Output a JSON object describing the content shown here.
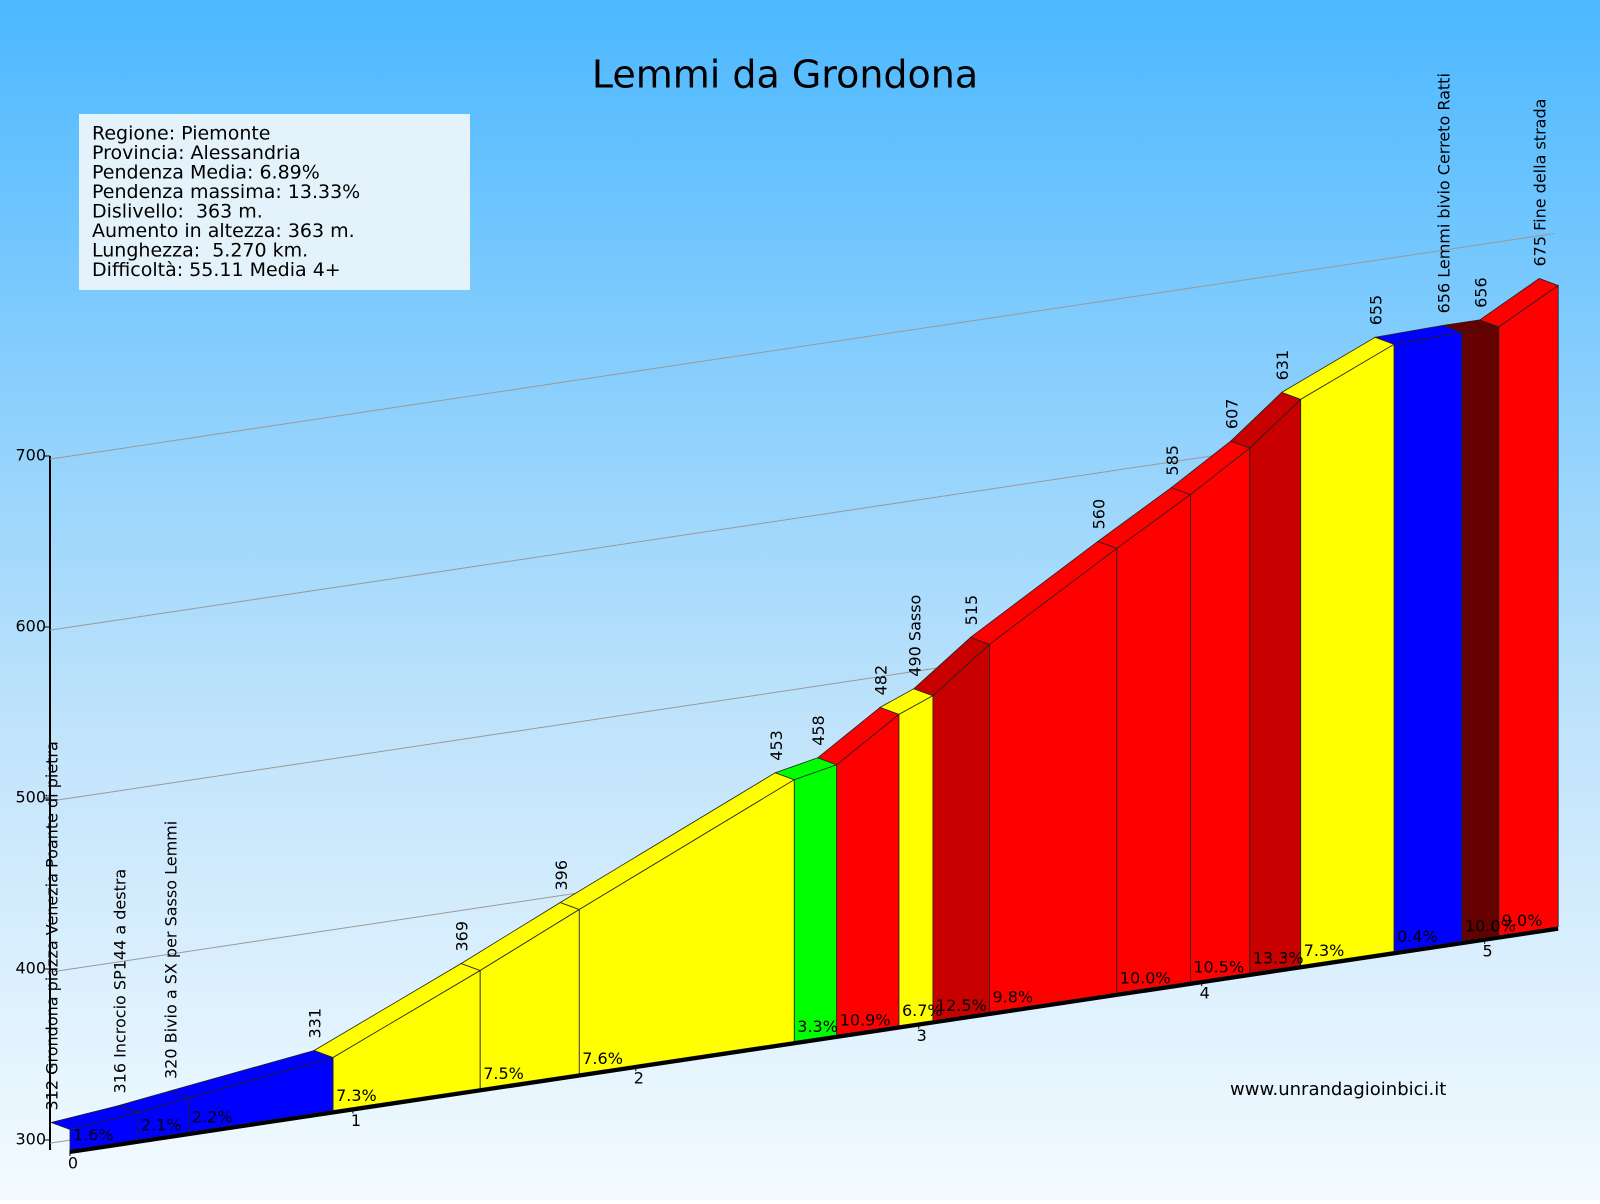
{
  "chart_data": {
    "type": "profile",
    "title": "Lemmi da Grondona",
    "info": [
      "Regione: Piemonte",
      "Provincia: Alessandria",
      "Pendenza Media: 6.89%",
      "Pendenza massima: 13.33%",
      "Dislivello:  363 m.",
      "Aumento in altezza: 363 m.",
      "Lunghezza:  5.270 km.",
      "Difficoltà: 55.11 Media 4+"
    ],
    "watermark": "www.unrandagioinbici.it",
    "x": [
      0,
      0.24,
      0.42,
      0.93,
      1.45,
      1.8,
      2.56,
      2.71,
      2.93,
      3.05,
      3.25,
      3.7,
      3.96,
      4.17,
      4.35,
      4.68,
      4.92,
      5.05,
      5.26
    ],
    "values": [
      312,
      316,
      320,
      331,
      369,
      396,
      453,
      458,
      482,
      490,
      515,
      560,
      585,
      607,
      631,
      655,
      656,
      656,
      675
    ],
    "value_labels": [
      "312 Grondona piazza Venezia Poante di pietra",
      "316 Incrocio SP144 a destra",
      "320 Bivio a SX per Sasso Lemmi",
      "331",
      "369",
      "396",
      "453",
      "458",
      "482",
      "490 Sasso",
      "515",
      "560",
      "585",
      "607",
      "631",
      "655",
      "656 Lemmi bivio Cerreto Ratti",
      "656",
      "675 Fine della strada"
    ],
    "segment_labels": [
      "1.6%",
      "2.1%",
      "2.2%",
      "7.3%",
      "7.5%",
      "7.6%",
      "3.3%",
      "10.9%",
      "6.7%",
      "12.5%",
      "9.8%",
      "10.0%",
      "10.5%",
      "13.3%",
      "7.3%",
      "0.4%",
      "10.0%",
      "9.0%"
    ],
    "segment_colors": [
      "#0000ff",
      "#0000ff",
      "#0000ff",
      "#ffff00",
      "#ffff00",
      "#ffff00",
      "#00ff00",
      "#ff0000",
      "#ffff00",
      "#c80000",
      "#ff0000",
      "#ff0000",
      "#ff0000",
      "#c80000",
      "#ffff00",
      "#0000ff",
      "#640000",
      "#ff0000"
    ],
    "xlim": [
      0,
      5.27
    ],
    "xticks": [
      0,
      1,
      2,
      3,
      4,
      5
    ],
    "ylim": [
      300,
      700
    ],
    "yticks": [
      300,
      400,
      500,
      600,
      700
    ],
    "grid": true
  }
}
